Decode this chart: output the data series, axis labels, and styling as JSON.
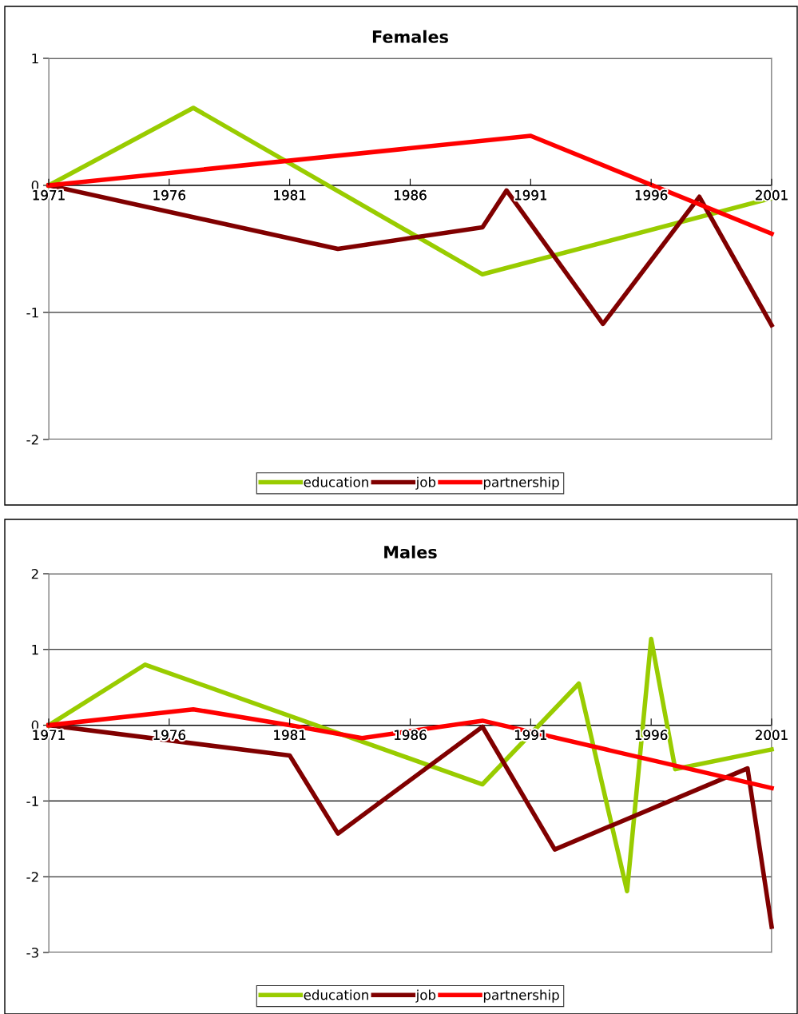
{
  "chart_data": [
    {
      "type": "line",
      "title": "Females",
      "xlim": [
        1971,
        2001
      ],
      "xticks": [
        1971,
        1976,
        1981,
        1986,
        1991,
        1996,
        2001
      ],
      "ylim": [
        -2,
        1
      ],
      "yticks": [
        -2,
        -1,
        0,
        1
      ],
      "grid": "y",
      "legend": "bottom",
      "line_style": "solid",
      "series": [
        {
          "name": "education",
          "color": "#99cc00",
          "x": [
            1971,
            1977,
            1989,
            2001
          ],
          "values": [
            0,
            0.61,
            -0.7,
            -0.1
          ]
        },
        {
          "name": "job",
          "color": "#800000",
          "x": [
            1971,
            1983,
            1989,
            1990,
            1994,
            1998,
            2001
          ],
          "values": [
            0,
            -0.5,
            -0.33,
            -0.04,
            -1.09,
            -0.09,
            -1.1
          ]
        },
        {
          "name": "partnership",
          "color": "#ff0000",
          "x": [
            1971,
            1991,
            2001
          ],
          "values": [
            0,
            0.39,
            -0.38
          ]
        }
      ]
    },
    {
      "type": "line",
      "title": "Males",
      "xlim": [
        1971,
        2001
      ],
      "xticks": [
        1971,
        1976,
        1981,
        1986,
        1991,
        1996,
        2001
      ],
      "ylim": [
        -3,
        2
      ],
      "yticks": [
        -3,
        -2,
        -1,
        0,
        1,
        2
      ],
      "grid": "y",
      "legend": "bottom",
      "line_style": "solid",
      "series": [
        {
          "name": "education",
          "color": "#99cc00",
          "x": [
            1971,
            1975,
            1989,
            1993,
            1995,
            1996,
            1997,
            2001
          ],
          "values": [
            0,
            0.8,
            -0.78,
            0.55,
            -2.19,
            1.14,
            -0.58,
            -0.32
          ]
        },
        {
          "name": "job",
          "color": "#800000",
          "x": [
            1971,
            1981,
            1983,
            1989,
            1992,
            2000,
            2001
          ],
          "values": [
            0,
            -0.4,
            -1.43,
            -0.02,
            -1.64,
            -0.57,
            -2.66
          ]
        },
        {
          "name": "partnership",
          "color": "#ff0000",
          "x": [
            1971,
            1977,
            1981,
            1984,
            1989,
            2001
          ],
          "values": [
            0,
            0.21,
            0,
            -0.17,
            0.06,
            -0.83
          ]
        }
      ]
    }
  ]
}
